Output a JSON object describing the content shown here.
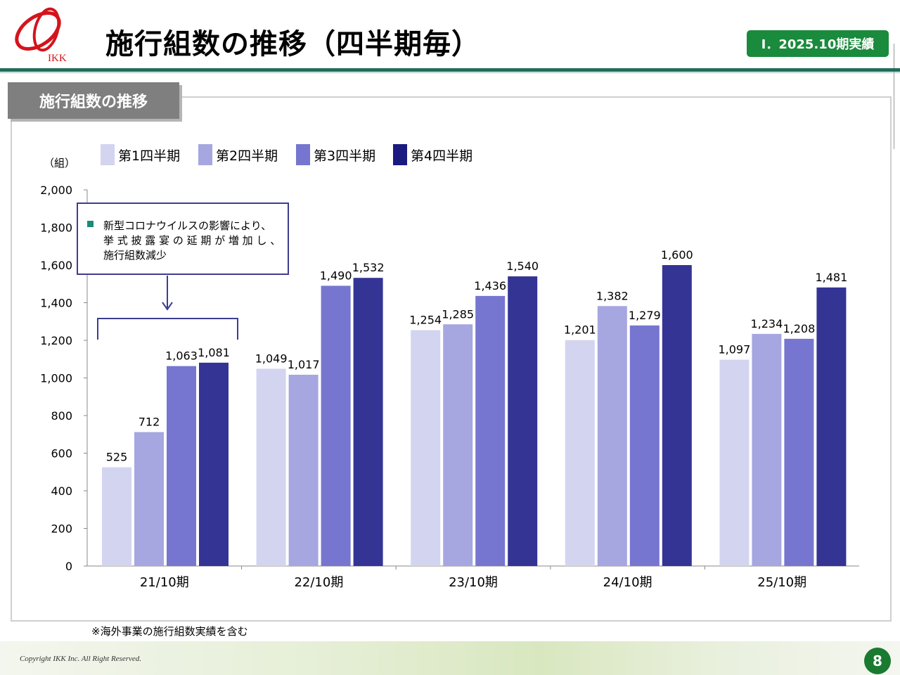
{
  "header": {
    "logo_text": "IKK",
    "title": "施行組数の推移（四半期毎）",
    "period_badge": "Ⅰ．2025.10期実績"
  },
  "section": {
    "tab_label": "施行組数の推移"
  },
  "footnote": "※海外事業の施行組数実績を含む",
  "footer": {
    "copyright": "Copyright IKK Inc. All Right Reserved.",
    "page_number": "8"
  },
  "annotation": {
    "bullet": "■",
    "lines": [
      "新型コロナウイルスの影響により、",
      "挙 式 披 露 宴 の 延 期 が 増 加 し 、",
      "施行組数減少"
    ],
    "bullet_color": "#1a8a7a"
  },
  "colors": {
    "q1": "#d3d4f0",
    "q2": "#a6a6e0",
    "q3": "#7676d0",
    "q4": "#343495",
    "legend_q4": "#1a1a80",
    "annotation_border": "#3d3d8f",
    "brand_red": "#d4141c",
    "badge_green": "#1a8a3c",
    "rule_green": "#1f6e5a"
  },
  "chart_data": {
    "type": "bar",
    "title": "",
    "ylabel": "（組）",
    "xlabel": "",
    "ylim": [
      0,
      2000
    ],
    "yticks": [
      0,
      200,
      400,
      600,
      800,
      1000,
      1200,
      1400,
      1600,
      1800,
      2000
    ],
    "ytick_labels": [
      "0",
      "200",
      "400",
      "600",
      "800",
      "1,000",
      "1,200",
      "1,400",
      "1,600",
      "1,800",
      "2,000"
    ],
    "categories": [
      "21/10期",
      "22/10期",
      "23/10期",
      "24/10期",
      "25/10期"
    ],
    "series": [
      {
        "name": "第1四半期",
        "values": [
          525,
          1049,
          1254,
          1201,
          1097
        ],
        "labels": [
          "525",
          "1,049",
          "1,254",
          "1,201",
          "1,097"
        ]
      },
      {
        "name": "第2四半期",
        "values": [
          712,
          1017,
          1285,
          1382,
          1234
        ],
        "labels": [
          "712",
          "1,017",
          "1,285",
          "1,382",
          "1,234"
        ]
      },
      {
        "name": "第3四半期",
        "values": [
          1063,
          1490,
          1436,
          1279,
          1208
        ],
        "labels": [
          "1,063",
          "1,490",
          "1,436",
          "1,279",
          "1,208"
        ]
      },
      {
        "name": "第4四半期",
        "values": [
          1081,
          1532,
          1540,
          1600,
          1481
        ],
        "labels": [
          "1,081",
          "1,532",
          "1,540",
          "1,600",
          "1,481"
        ]
      }
    ],
    "legend_position": "top-left",
    "grid": false
  }
}
